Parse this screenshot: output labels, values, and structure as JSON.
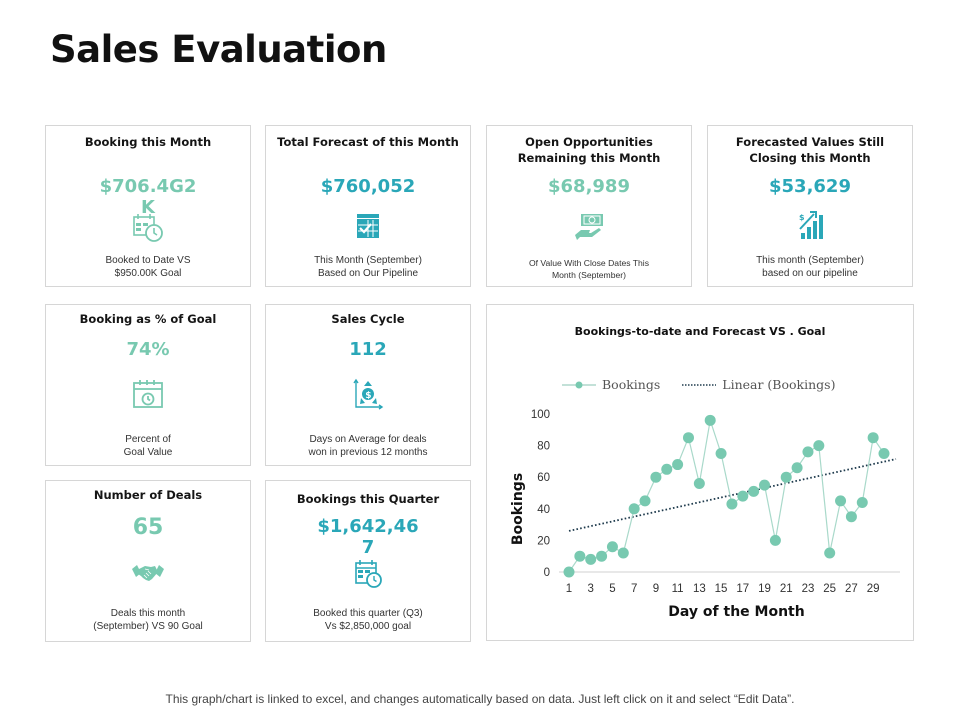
{
  "page": {
    "title": "Sales Evaluation",
    "footer_note": "This graph/chart is linked to excel, and changes automatically based on data. Just left click on it and select “Edit Data”."
  },
  "colors": {
    "mint": "#78c9b0",
    "teal": "#2aa7b8",
    "trend": "#1f3b4d",
    "border": "#d6d6d6"
  },
  "cards": {
    "booking_month": {
      "title": "Booking this Month",
      "value": "$706.4G2K",
      "icon": "calendar-clock-icon",
      "desc_line1": "Booked to Date VS",
      "desc_line2": "$950.00K Goal"
    },
    "total_forecast": {
      "title": "Total Forecast of this Month",
      "value": "$760,052",
      "icon": "calendar-check-icon",
      "desc_line1": "This Month  (September)",
      "desc_line2": "Based on Our Pipeline"
    },
    "open_opportunities": {
      "title_line1": "Open Opportunities",
      "title_line2": "Remaining this Month",
      "value": "$68,989",
      "icon": "money-hand-icon",
      "desc_line1": "Of Value With Close Dates This",
      "desc_line2": "Month  (September)"
    },
    "forecasted_values": {
      "title_line1": "Forecasted  Values Still",
      "title_line2": "Closing this Month",
      "value": "$53,629",
      "icon": "growth-chart-icon",
      "desc_line1": "This month  (September)",
      "desc_line2": "based on our pipeline"
    },
    "booking_pct_goal": {
      "title": "Booking as % of Goal",
      "value": "74%",
      "icon": "calendar-clock-icon",
      "desc_line1": "Percent of",
      "desc_line2": "Goal Value"
    },
    "sales_cycle": {
      "title": "Sales Cycle",
      "value": "112",
      "icon": "dollar-cycle-icon",
      "desc_line1": "Days on Average for deals",
      "desc_line2": "won in previous 12 months"
    },
    "number_of_deals": {
      "title": "Number of Deals",
      "value": "65",
      "icon": "handshake-icon",
      "desc_line1": "Deals this month",
      "desc_line2": "(September) VS 90 Goal"
    },
    "bookings_quarter": {
      "title": "Bookings this Quarter",
      "value": "$1,642,467",
      "icon": "calendar-clock-icon",
      "desc_line1": "Booked this quarter (Q3)",
      "desc_line2": "Vs $2,850,000 goal"
    }
  },
  "chart_data": {
    "type": "line",
    "title": "Bookings-to-date and Forecast VS . Goal",
    "xlabel": "Day of the Month",
    "ylabel": "Bookings",
    "x": [
      1,
      2,
      3,
      4,
      5,
      6,
      7,
      8,
      9,
      10,
      11,
      12,
      13,
      14,
      15,
      16,
      17,
      18,
      19,
      20,
      21,
      22,
      23,
      24,
      25,
      26,
      27,
      28,
      29,
      30
    ],
    "x_tick_labels": [
      "1",
      "3",
      "5",
      "7",
      "9",
      "11",
      "13",
      "15",
      "17",
      "19",
      "21",
      "23",
      "25",
      "27",
      "29"
    ],
    "y_ticks": [
      0,
      20,
      40,
      60,
      80,
      100
    ],
    "ylim": [
      0,
      100
    ],
    "xlim": [
      1,
      30
    ],
    "grid": false,
    "legend_position": "top",
    "series": [
      {
        "name": "Bookings",
        "marker": "circle",
        "values": [
          0,
          10,
          8,
          10,
          16,
          12,
          40,
          45,
          60,
          65,
          68,
          85,
          56,
          96,
          75,
          43,
          48,
          51,
          55,
          20,
          60,
          66,
          76,
          80,
          12,
          45,
          35,
          44,
          85,
          75
        ]
      },
      {
        "name": "Linear (Bookings)",
        "style": "dotted",
        "trend_start": 26,
        "trend_end": 70
      }
    ]
  }
}
